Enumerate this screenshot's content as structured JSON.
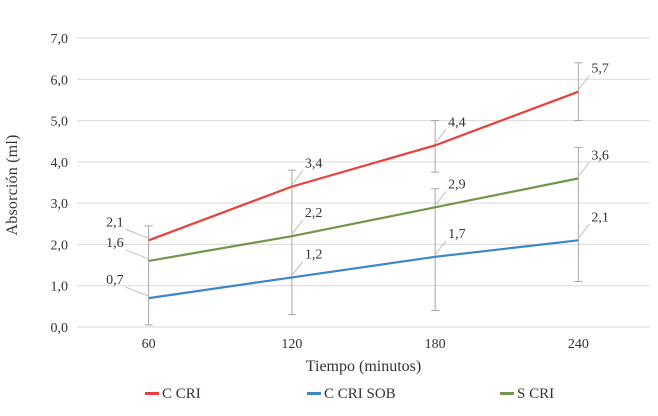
{
  "chart_data": {
    "type": "line",
    "title": "",
    "xlabel": "Tiempo (minutos)",
    "ylabel": "Absorción (ml)",
    "x": [
      60,
      120,
      180,
      240
    ],
    "x_tick_labels": [
      "60",
      "120",
      "180",
      "240"
    ],
    "y_tick_labels": [
      "0,0",
      "1,0",
      "2,0",
      "3,0",
      "4,0",
      "5,0",
      "6,0",
      "7,0"
    ],
    "ylim": [
      0,
      7
    ],
    "grid": true,
    "legend_position": "bottom",
    "colors": {
      "grid": "#d9d9d9",
      "error_bar": "#a6a6a6",
      "leader_line": "#bfbfbf",
      "text": "#333333"
    },
    "series": [
      {
        "name": "C CRI",
        "color": "#e8413c",
        "values": [
          2.1,
          3.4,
          4.4,
          5.7
        ],
        "labels": [
          "2,1",
          "3,4",
          "4,4",
          "5,7"
        ]
      },
      {
        "name": "C CRI SOB",
        "color": "#3d87c9",
        "values": [
          0.7,
          1.2,
          1.7,
          2.1
        ],
        "labels": [
          "0,7",
          "1,2",
          "1,7",
          "2,1"
        ]
      },
      {
        "name": "S CRI",
        "color": "#73964e",
        "values": [
          1.6,
          2.2,
          2.9,
          3.6
        ],
        "labels": [
          "1,6",
          "2,2",
          "2,9",
          "3,6"
        ]
      }
    ],
    "error_bar_spans": [
      {
        "x_index": 0,
        "spans": [
          [
            2.45,
            0.05
          ]
        ]
      },
      {
        "x_index": 1,
        "spans": [
          [
            3.8,
            0.3
          ]
        ]
      },
      {
        "x_index": 2,
        "spans": [
          [
            5.0,
            3.75
          ],
          [
            3.35,
            0.4
          ]
        ]
      },
      {
        "x_index": 3,
        "spans": [
          [
            6.4,
            5.0
          ],
          [
            4.35,
            1.1
          ]
        ]
      }
    ]
  }
}
